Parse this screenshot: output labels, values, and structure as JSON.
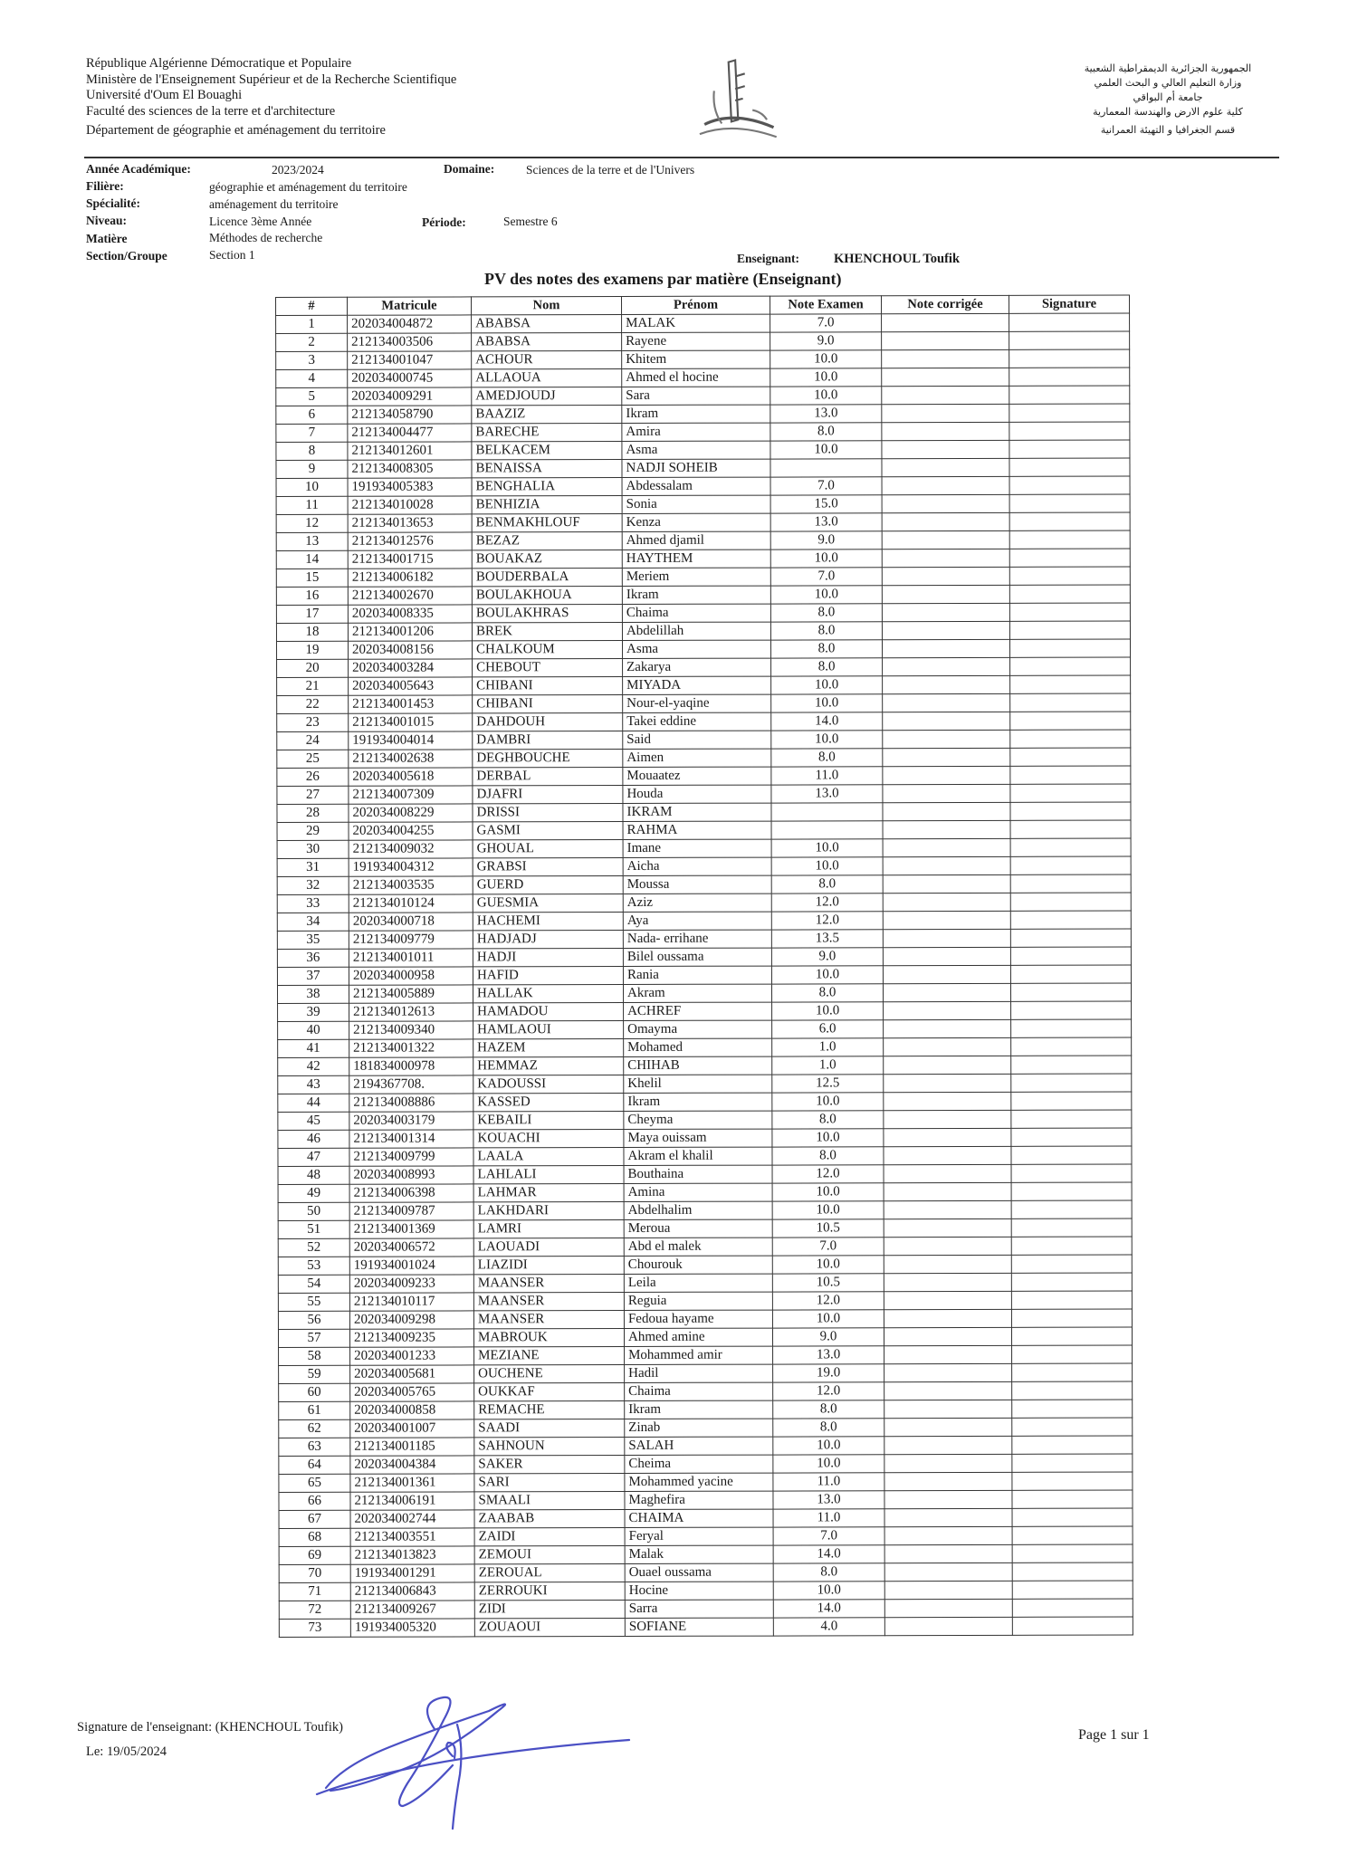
{
  "header_left": [
    "République Algérienne Démocratique et Populaire",
    "Ministère de l'Enseignement Supérieur et de la Recherche Scientifique",
    "Université d'Oum El Bouaghi",
    "Faculté des sciences de la terre et d'architecture",
    "Département de géographie et aménagement du territoire"
  ],
  "header_right": [
    "الجمهورية الجزائرية الديمقراطية الشعبية",
    "وزارة التعليم العالي و البحث العلمي",
    "جامعة أم البواقي",
    "كلية علوم الارض والهندسة المعمارية",
    "قسم الجغرافيا و التهيئة العمرانية"
  ],
  "info": {
    "annee_label": "Année Académique:",
    "annee": "2023/2024",
    "domaine_label": "Domaine:",
    "domaine": "Sciences de la terre et de l'Univers",
    "filiere_label": "Filière:",
    "filiere": "géographie et aménagement du territoire",
    "specialite_label": "Spécialité:",
    "specialite": "aménagement du territoire",
    "niveau_label": "Niveau:",
    "niveau": "Licence 3ème Année",
    "periode_label": "Période:",
    "periode": "Semestre 6",
    "matiere_label": "Matière",
    "matiere": "Méthodes de recherche",
    "section_label": "Section/Groupe",
    "section": "Section 1",
    "enseignant_label": "Enseignant:",
    "enseignant": "KHENCHOUL Toufik"
  },
  "title": "PV des notes des examens par  matière (Enseignant)",
  "table": {
    "columns": [
      "#",
      "Matricule",
      "Nom",
      "Prénom",
      "Note Examen",
      "Note corrigée",
      "Signature"
    ],
    "rows": [
      [
        "1",
        "202034004872",
        "ABABSA",
        "MALAK",
        "7.0"
      ],
      [
        "2",
        "212134003506",
        "ABABSA",
        "Rayene",
        "9.0"
      ],
      [
        "3",
        "212134001047",
        "ACHOUR",
        "Khitem",
        "10.0"
      ],
      [
        "4",
        "202034000745",
        "ALLAOUA",
        "Ahmed el hocine",
        "10.0"
      ],
      [
        "5",
        "202034009291",
        "AMEDJOUDJ",
        "Sara",
        "10.0"
      ],
      [
        "6",
        "212134058790",
        "BAAZIZ",
        "Ikram",
        "13.0"
      ],
      [
        "7",
        "212134004477",
        "BARECHE",
        "Amira",
        "8.0"
      ],
      [
        "8",
        "212134012601",
        "BELKACEM",
        "Asma",
        "10.0"
      ],
      [
        "9",
        "212134008305",
        "BENAISSA",
        "NADJI SOHEIB",
        ""
      ],
      [
        "10",
        "191934005383",
        "BENGHALIA",
        "Abdessalam",
        "7.0"
      ],
      [
        "11",
        "212134010028",
        "BENHIZIA",
        "Sonia",
        "15.0"
      ],
      [
        "12",
        "212134013653",
        "BENMAKHLOUF",
        "Kenza",
        "13.0"
      ],
      [
        "13",
        "212134012576",
        "BEZAZ",
        "Ahmed djamil",
        "9.0"
      ],
      [
        "14",
        "212134001715",
        "BOUAKAZ",
        "HAYTHEM",
        "10.0"
      ],
      [
        "15",
        "212134006182",
        "BOUDERBALA",
        "Meriem",
        "7.0"
      ],
      [
        "16",
        "212134002670",
        "BOULAKHOUA",
        "Ikram",
        "10.0"
      ],
      [
        "17",
        "202034008335",
        "BOULAKHRAS",
        "Chaima",
        "8.0"
      ],
      [
        "18",
        "212134001206",
        "BREK",
        "Abdelillah",
        "8.0"
      ],
      [
        "19",
        "202034008156",
        "CHALKOUM",
        "Asma",
        "8.0"
      ],
      [
        "20",
        "202034003284",
        "CHEBOUT",
        "Zakarya",
        "8.0"
      ],
      [
        "21",
        "202034005643",
        "CHIBANI",
        "MIYADA",
        "10.0"
      ],
      [
        "22",
        "212134001453",
        "CHIBANI",
        "Nour-el-yaqine",
        "10.0"
      ],
      [
        "23",
        "212134001015",
        "DAHDOUH",
        "Takei eddine",
        "14.0"
      ],
      [
        "24",
        "191934004014",
        "DAMBRI",
        "Said",
        "10.0"
      ],
      [
        "25",
        "212134002638",
        "DEGHBOUCHE",
        "Aimen",
        "8.0"
      ],
      [
        "26",
        "202034005618",
        "DERBAL",
        "Mouaatez",
        "11.0"
      ],
      [
        "27",
        "212134007309",
        "DJAFRI",
        "Houda",
        "13.0"
      ],
      [
        "28",
        "202034008229",
        "DRISSI",
        "IKRAM",
        ""
      ],
      [
        "29",
        "202034004255",
        "GASMI",
        "RAHMA",
        ""
      ],
      [
        "30",
        "212134009032",
        "GHOUAL",
        "Imane",
        "10.0"
      ],
      [
        "31",
        "191934004312",
        "GRABSI",
        "Aicha",
        "10.0"
      ],
      [
        "32",
        "212134003535",
        "GUERD",
        "Moussa",
        "8.0"
      ],
      [
        "33",
        "212134010124",
        "GUESMIA",
        "Aziz",
        "12.0"
      ],
      [
        "34",
        "202034000718",
        "HACHEMI",
        "Aya",
        "12.0"
      ],
      [
        "35",
        "212134009779",
        "HADJADJ",
        "Nada- errihane",
        "13.5"
      ],
      [
        "36",
        "212134001011",
        "HADJI",
        "Bilel oussama",
        "9.0"
      ],
      [
        "37",
        "202034000958",
        "HAFID",
        "Rania",
        "10.0"
      ],
      [
        "38",
        "212134005889",
        "HALLAK",
        "Akram",
        "8.0"
      ],
      [
        "39",
        "212134012613",
        "HAMADOU",
        "ACHREF",
        "10.0"
      ],
      [
        "40",
        "212134009340",
        "HAMLAOUI",
        "Omayma",
        "6.0"
      ],
      [
        "41",
        "212134001322",
        "HAZEM",
        "Mohamed",
        "1.0"
      ],
      [
        "42",
        "181834000978",
        "HEMMAZ",
        "CHIHAB",
        "1.0"
      ],
      [
        "43",
        "2194367708.",
        "KADOUSSI",
        "Khelil",
        "12.5"
      ],
      [
        "44",
        "212134008886",
        "KASSED",
        "Ikram",
        "10.0"
      ],
      [
        "45",
        "202034003179",
        "KEBAILI",
        "Cheyma",
        "8.0"
      ],
      [
        "46",
        "212134001314",
        "KOUACHI",
        "Maya ouissam",
        "10.0"
      ],
      [
        "47",
        "212134009799",
        "LAALA",
        "Akram el khalil",
        "8.0"
      ],
      [
        "48",
        "202034008993",
        "LAHLALI",
        "Bouthaina",
        "12.0"
      ],
      [
        "49",
        "212134006398",
        "LAHMAR",
        "Amina",
        "10.0"
      ],
      [
        "50",
        "212134009787",
        "LAKHDARI",
        "Abdelhalim",
        "10.0"
      ],
      [
        "51",
        "212134001369",
        "LAMRI",
        "Meroua",
        "10.5"
      ],
      [
        "52",
        "202034006572",
        "LAOUADI",
        "Abd el malek",
        "7.0"
      ],
      [
        "53",
        "191934001024",
        "LIAZIDI",
        "Chourouk",
        "10.0"
      ],
      [
        "54",
        "202034009233",
        "MAANSER",
        "Leila",
        "10.5"
      ],
      [
        "55",
        "212134010117",
        "MAANSER",
        "Reguia",
        "12.0"
      ],
      [
        "56",
        "202034009298",
        "MAANSER",
        "Fedoua hayame",
        "10.0"
      ],
      [
        "57",
        "212134009235",
        "MABROUK",
        "Ahmed amine",
        "9.0"
      ],
      [
        "58",
        "202034001233",
        "MEZIANE",
        "Mohammed amir",
        "13.0"
      ],
      [
        "59",
        "202034005681",
        "OUCHENE",
        "Hadil",
        "19.0"
      ],
      [
        "60",
        "202034005765",
        "OUKKAF",
        "Chaima",
        "12.0"
      ],
      [
        "61",
        "202034000858",
        "REMACHE",
        "Ikram",
        "8.0"
      ],
      [
        "62",
        "202034001007",
        "SAADI",
        "Zinab",
        "8.0"
      ],
      [
        "63",
        "212134001185",
        "SAHNOUN",
        "SALAH",
        "10.0"
      ],
      [
        "64",
        "202034004384",
        "SAKER",
        "Cheima",
        "10.0"
      ],
      [
        "65",
        "212134001361",
        "SARI",
        "Mohammed yacine",
        "11.0"
      ],
      [
        "66",
        "212134006191",
        "SMAALI",
        "Maghefira",
        "13.0"
      ],
      [
        "67",
        "202034002744",
        "ZAABAB",
        "CHAIMA",
        "11.0"
      ],
      [
        "68",
        "212134003551",
        "ZAIDI",
        "Feryal",
        "7.0"
      ],
      [
        "69",
        "212134013823",
        "ZEMOUI",
        "Malak",
        "14.0"
      ],
      [
        "70",
        "191934001291",
        "ZEROUAL",
        "Ouael oussama",
        "8.0"
      ],
      [
        "71",
        "212134006843",
        "ZERROUKI",
        "Hocine",
        "10.0"
      ],
      [
        "72",
        "212134009267",
        "ZIDI",
        "Sarra",
        "14.0"
      ],
      [
        "73",
        "191934005320",
        "ZOUAOUI",
        "SOFIANE",
        "4.0"
      ]
    ]
  },
  "footer": {
    "signature_label": "Signature de l'enseignant: (KHENCHOUL Toufik)",
    "date": "Le: 19/05/2024",
    "page": "Page 1 sur 1"
  },
  "signature_color": "#4a4fc4"
}
